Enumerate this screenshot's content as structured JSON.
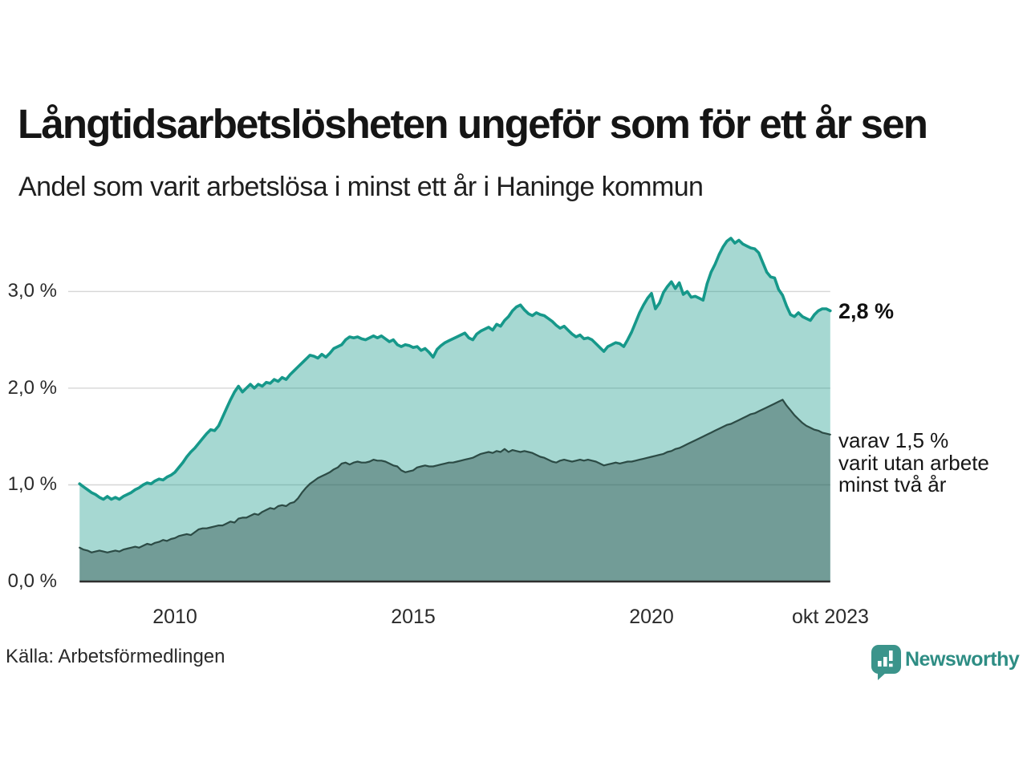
{
  "header": {
    "title": "Långtidsarbetslösheten ungeför som för ett år sen",
    "subtitle": "Andel som varit arbetslösa i minst ett år i Haninge kommun"
  },
  "axis": {
    "y_labels": [
      "3,0 %",
      "2,0 %",
      "1,0 %",
      "0,0 %"
    ],
    "x_labels": [
      "2010",
      "2015",
      "2020",
      "okt 2023"
    ]
  },
  "annotations": {
    "end_value_label": "2,8 %",
    "secondary_line1": "varav 1,5 %",
    "secondary_line2": "varit utan arbete",
    "secondary_line3": "minst två år"
  },
  "footer": {
    "source": "Källa: Arbetsförmedlingen",
    "brand_name": "Newsworthy",
    "brand_color": "#2e8d84",
    "logo_icon": "bar-chart-speech-bubble"
  },
  "colors": {
    "series_main_line": "#16988a",
    "series_secondary_line": "#2c4b45",
    "gridline": "#d6d6d6",
    "axis_line": "#2f2f2f"
  },
  "chart_data": {
    "type": "area",
    "title": "Långtidsarbetslösheten ungeför som för ett år sen",
    "subtitle": "Andel som varit arbetslösa i minst ett år i Haninge kommun",
    "unit": "%",
    "grid": "horizontal",
    "x_start": 2008.0,
    "x_end": 2023.75,
    "step_months": 1,
    "ylim": [
      0,
      3.6
    ],
    "y_ticks": [
      {
        "v": 0,
        "label": "0,0 %"
      },
      {
        "v": 1,
        "label": "1,0 %"
      },
      {
        "v": 2,
        "label": "2,0 %"
      },
      {
        "v": 3,
        "label": "3,0 %"
      }
    ],
    "x_ticks": [
      {
        "t": 2010,
        "label": "2010"
      },
      {
        "t": 2015,
        "label": "2015"
      },
      {
        "t": 2020,
        "label": "2020"
      },
      {
        "t": 2023.75,
        "label": "okt 2023"
      }
    ],
    "series": [
      {
        "name": "Andel arbetslösa minst ett år",
        "color": "#16988a",
        "line_width": 3.6,
        "fill_opacity": 0.38,
        "end_value": 2.8,
        "end_label": "2,8 %",
        "values": [
          1.01,
          0.98,
          0.95,
          0.92,
          0.9,
          0.87,
          0.85,
          0.88,
          0.85,
          0.87,
          0.85,
          0.88,
          0.9,
          0.92,
          0.95,
          0.97,
          1.0,
          1.02,
          1.01,
          1.04,
          1.06,
          1.05,
          1.08,
          1.1,
          1.13,
          1.18,
          1.23,
          1.29,
          1.34,
          1.38,
          1.43,
          1.48,
          1.53,
          1.57,
          1.56,
          1.61,
          1.7,
          1.79,
          1.88,
          1.96,
          2.02,
          1.96,
          2.0,
          2.04,
          2.0,
          2.04,
          2.02,
          2.06,
          2.05,
          2.09,
          2.07,
          2.11,
          2.09,
          2.14,
          2.18,
          2.22,
          2.26,
          2.3,
          2.34,
          2.33,
          2.31,
          2.35,
          2.32,
          2.36,
          2.41,
          2.43,
          2.45,
          2.5,
          2.53,
          2.52,
          2.53,
          2.51,
          2.5,
          2.52,
          2.54,
          2.52,
          2.54,
          2.51,
          2.48,
          2.5,
          2.45,
          2.43,
          2.45,
          2.44,
          2.42,
          2.43,
          2.39,
          2.41,
          2.37,
          2.32,
          2.4,
          2.44,
          2.47,
          2.49,
          2.51,
          2.53,
          2.55,
          2.57,
          2.52,
          2.5,
          2.56,
          2.59,
          2.61,
          2.63,
          2.6,
          2.66,
          2.64,
          2.7,
          2.74,
          2.8,
          2.84,
          2.86,
          2.81,
          2.77,
          2.75,
          2.78,
          2.76,
          2.75,
          2.72,
          2.69,
          2.65,
          2.62,
          2.64,
          2.6,
          2.56,
          2.53,
          2.55,
          2.51,
          2.52,
          2.5,
          2.46,
          2.42,
          2.38,
          2.43,
          2.45,
          2.47,
          2.46,
          2.43,
          2.5,
          2.58,
          2.68,
          2.78,
          2.86,
          2.93,
          2.98,
          2.82,
          2.88,
          2.99,
          3.05,
          3.1,
          3.03,
          3.09,
          2.97,
          3.0,
          2.94,
          2.95,
          2.93,
          2.91,
          3.08,
          3.2,
          3.28,
          3.38,
          3.46,
          3.52,
          3.55,
          3.5,
          3.53,
          3.49,
          3.47,
          3.45,
          3.44,
          3.4,
          3.3,
          3.2,
          3.15,
          3.14,
          3.02,
          2.96,
          2.85,
          2.76,
          2.74,
          2.78,
          2.74,
          2.72,
          2.7,
          2.76,
          2.8,
          2.82,
          2.82,
          2.8
        ]
      },
      {
        "name": "Andel som varit utan arbete minst två år",
        "color": "#2c4b45",
        "line_width": 2.2,
        "fill_opacity": 0.42,
        "end_value": 1.5,
        "annotation": "varav 1,5 % varit utan arbete minst två år",
        "values": [
          0.35,
          0.33,
          0.32,
          0.3,
          0.31,
          0.32,
          0.31,
          0.3,
          0.31,
          0.32,
          0.31,
          0.33,
          0.34,
          0.35,
          0.36,
          0.35,
          0.37,
          0.39,
          0.38,
          0.4,
          0.41,
          0.43,
          0.42,
          0.44,
          0.45,
          0.47,
          0.48,
          0.49,
          0.48,
          0.51,
          0.54,
          0.55,
          0.55,
          0.56,
          0.57,
          0.58,
          0.58,
          0.6,
          0.62,
          0.61,
          0.65,
          0.66,
          0.66,
          0.68,
          0.7,
          0.69,
          0.72,
          0.74,
          0.76,
          0.75,
          0.78,
          0.79,
          0.78,
          0.81,
          0.82,
          0.86,
          0.92,
          0.97,
          1.01,
          1.04,
          1.07,
          1.09,
          1.11,
          1.13,
          1.16,
          1.18,
          1.22,
          1.23,
          1.21,
          1.23,
          1.24,
          1.23,
          1.23,
          1.24,
          1.26,
          1.25,
          1.25,
          1.24,
          1.22,
          1.2,
          1.19,
          1.15,
          1.13,
          1.14,
          1.15,
          1.18,
          1.19,
          1.2,
          1.19,
          1.19,
          1.2,
          1.21,
          1.22,
          1.23,
          1.23,
          1.24,
          1.25,
          1.26,
          1.27,
          1.28,
          1.3,
          1.32,
          1.33,
          1.34,
          1.33,
          1.35,
          1.34,
          1.37,
          1.34,
          1.36,
          1.35,
          1.34,
          1.35,
          1.34,
          1.33,
          1.31,
          1.29,
          1.28,
          1.26,
          1.24,
          1.23,
          1.25,
          1.26,
          1.25,
          1.24,
          1.25,
          1.26,
          1.25,
          1.26,
          1.25,
          1.24,
          1.22,
          1.2,
          1.21,
          1.22,
          1.23,
          1.22,
          1.23,
          1.24,
          1.24,
          1.25,
          1.26,
          1.27,
          1.28,
          1.29,
          1.3,
          1.31,
          1.32,
          1.34,
          1.35,
          1.37,
          1.38,
          1.4,
          1.42,
          1.44,
          1.46,
          1.48,
          1.5,
          1.52,
          1.54,
          1.56,
          1.58,
          1.6,
          1.62,
          1.63,
          1.65,
          1.67,
          1.69,
          1.71,
          1.73,
          1.74,
          1.76,
          1.78,
          1.8,
          1.82,
          1.84,
          1.86,
          1.88,
          1.82,
          1.77,
          1.72,
          1.68,
          1.64,
          1.61,
          1.59,
          1.57,
          1.56,
          1.54,
          1.53,
          1.52
        ]
      }
    ]
  }
}
